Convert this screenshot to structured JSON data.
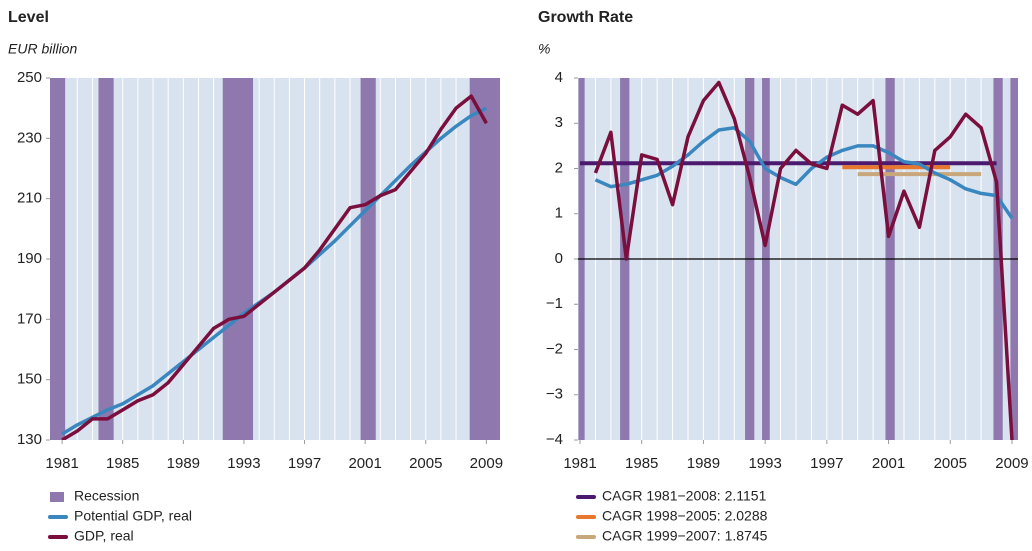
{
  "chart_data": [
    {
      "type": "line",
      "title": "Level",
      "y_label": "EUR billion",
      "xlim": [
        1980.2,
        2009.9
      ],
      "xticks": [
        1981,
        1985,
        1989,
        1993,
        1997,
        2001,
        2005,
        2009
      ],
      "ylim": [
        130,
        250
      ],
      "yticks": [
        130,
        150,
        170,
        190,
        210,
        230,
        250
      ],
      "background": "#d9e3ef",
      "recessions": {
        "name": "Recession",
        "color": "#8e78ad",
        "spans": [
          [
            1980.2,
            1981.2
          ],
          [
            1983.4,
            1984.4
          ],
          [
            1991.6,
            1993.6
          ],
          [
            2000.7,
            2001.7
          ],
          [
            2007.9,
            2009.9
          ]
        ]
      },
      "x": [
        1981,
        1982,
        1983,
        1984,
        1985,
        1986,
        1987,
        1988,
        1989,
        1990,
        1991,
        1992,
        1993,
        1994,
        1995,
        1996,
        1997,
        1998,
        1999,
        2000,
        2001,
        2002,
        2003,
        2004,
        2005,
        2006,
        2007,
        2008,
        2009
      ],
      "series": [
        {
          "name": "Potential GDP, real",
          "color": "#3a87c0",
          "values": [
            132,
            135,
            137.5,
            140,
            142,
            145,
            148,
            152,
            156,
            160,
            164,
            168,
            172,
            175.5,
            179,
            183,
            187,
            191.5,
            196,
            201,
            206,
            211,
            216,
            221,
            225.5,
            230,
            234,
            237.5,
            240
          ]
        },
        {
          "name": "GDP, real",
          "color": "#7a0f3d",
          "values": [
            130,
            133,
            137,
            137,
            140,
            143,
            145,
            149,
            155,
            161,
            167,
            170,
            171,
            175,
            179,
            183,
            187,
            193,
            200,
            207,
            208,
            211,
            213,
            219,
            225,
            233,
            240,
            244,
            235
          ]
        }
      ]
    },
    {
      "type": "line",
      "title": "Growth Rate",
      "y_label": "%",
      "xlim": [
        1980.87,
        2009.39
      ],
      "xticks": [
        1981,
        1985,
        1989,
        1993,
        1997,
        2001,
        2005,
        2009
      ],
      "ylim": [
        -4,
        4
      ],
      "yticks": [
        4,
        3,
        2,
        1,
        0,
        {
          "value": -1,
          "label": "−1"
        },
        {
          "value": -2,
          "label": "−2"
        },
        {
          "value": -3,
          "label": "−3"
        },
        {
          "value": -4,
          "label": "−4"
        }
      ],
      "zero_line": true,
      "background": "#d9e3ef",
      "recessions": {
        "color": "#8e78ad",
        "spans": [
          [
            1980.9,
            1981.3
          ],
          [
            1983.6,
            1984.2
          ],
          [
            1991.7,
            1992.3
          ],
          [
            1992.8,
            1993.3
          ],
          [
            2000.8,
            2001.4
          ],
          [
            2007.8,
            2008.4
          ],
          [
            2008.9,
            2009.39
          ]
        ]
      },
      "x": [
        1982,
        1983,
        1984,
        1985,
        1986,
        1987,
        1988,
        1989,
        1990,
        1991,
        1992,
        1993,
        1994,
        1995,
        1996,
        1997,
        1998,
        1999,
        2000,
        2001,
        2002,
        2003,
        2004,
        2005,
        2006,
        2007,
        2008,
        2009
      ],
      "series": [
        {
          "color": "#3a87c0",
          "values": [
            1.75,
            1.6,
            1.65,
            1.75,
            1.85,
            2.05,
            2.3,
            2.6,
            2.85,
            2.9,
            2.6,
            2.0,
            1.8,
            1.65,
            2.0,
            2.25,
            2.4,
            2.5,
            2.5,
            2.35,
            2.15,
            2.1,
            1.9,
            1.75,
            1.55,
            1.45,
            1.4,
            0.9
          ]
        },
        {
          "color": "#7a0f3d",
          "values": [
            1.9,
            2.8,
            0.0,
            2.3,
            2.2,
            1.2,
            2.7,
            3.5,
            3.9,
            3.1,
            1.8,
            0.3,
            2.0,
            2.4,
            2.1,
            2.0,
            3.4,
            3.2,
            3.5,
            0.5,
            1.5,
            0.7,
            2.4,
            2.7,
            3.2,
            2.9,
            1.7,
            -4.0
          ]
        }
      ],
      "cagr": [
        {
          "name": "CAGR 1981−2008: 2.1151",
          "color": "#4b1a6e",
          "value": 2.1151,
          "start": 1981,
          "end": 2008
        },
        {
          "name": "CAGR 1998−2005: 2.0288",
          "color": "#e8772e",
          "value": 2.0288,
          "start": 1998,
          "end": 2005
        },
        {
          "name": "CAGR 1999−2007: 1.8745",
          "color": "#c8a77a",
          "value": 1.8745,
          "start": 1999,
          "end": 2007
        }
      ]
    }
  ]
}
